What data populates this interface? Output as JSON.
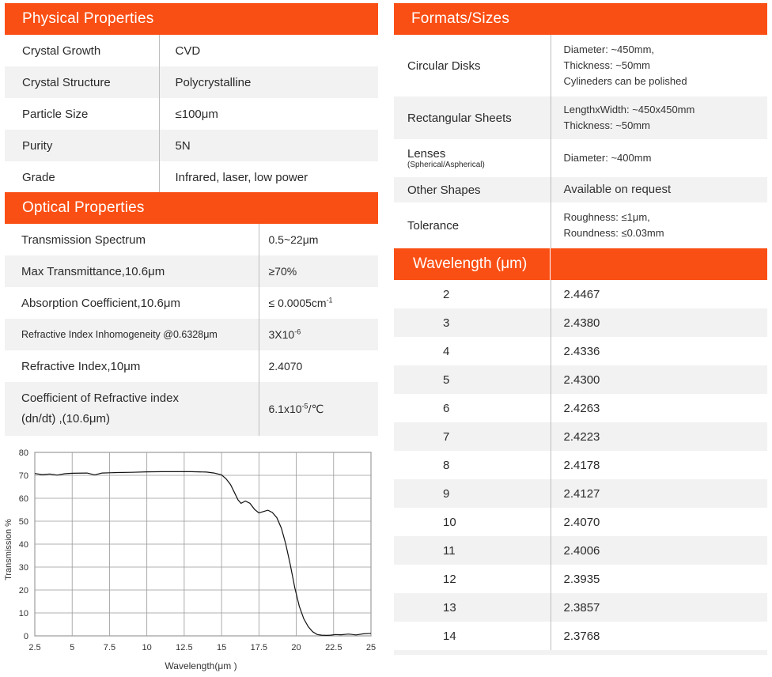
{
  "physical": {
    "title": "Physical Properties",
    "rows": [
      {
        "key": "Crystal Growth",
        "value": "CVD"
      },
      {
        "key": "Crystal Structure",
        "value": "Polycrystalline"
      },
      {
        "key": "Particle Size",
        "value": "≤100μm"
      },
      {
        "key": "Purity",
        "value": "5N"
      },
      {
        "key": "Grade",
        "value": "Infrared, laser, low power"
      }
    ]
  },
  "optical": {
    "title": "Optical Properties",
    "rows": [
      {
        "key": "Transmission Spectrum",
        "value": "0.5~22μm"
      },
      {
        "key": "Max Transmittance,10.6μm",
        "value": "≥70%"
      },
      {
        "key": "Absorption Coefficient,10.6μm",
        "value_base": "≤ 0.0005cm",
        "value_sup": "-1"
      },
      {
        "key": "Refractive Index Inhomogeneity @0.6328μm",
        "value_base": "3X10",
        "value_sup": "-6"
      },
      {
        "key": "Refractive Index,10μm",
        "value": "2.4070"
      },
      {
        "key_line1": "Coefficient of Refractive index",
        "key_line2": "(dn/dt) ,(10.6μm)",
        "value_base": "6.1x10",
        "value_sup": "-5",
        "value_suffix": "/℃"
      }
    ]
  },
  "formats": {
    "title": "Formats/Sizes",
    "rows": [
      {
        "key": "Circular Disks",
        "lines": [
          "Diameter: ~450mm,",
          "Thickness: ~50mm",
          "Cylineders can be polished"
        ]
      },
      {
        "key": "Rectangular Sheets",
        "lines": [
          "LengthxWidth: ~450x450mm",
          "Thickness: ~50mm"
        ]
      },
      {
        "key": "Lenses",
        "key_sub": "(Spherical/Aspherical)",
        "lines": [
          "Diameter: ~400mm"
        ]
      },
      {
        "key": "Other Shapes",
        "lines": [
          "Available on request"
        ]
      },
      {
        "key": "Tolerance",
        "lines": [
          "Roughness: ≤1μm,",
          "Roundness: ≤0.03mm"
        ]
      }
    ]
  },
  "wavelength": {
    "title": "Wavelength (μm)",
    "rows": [
      {
        "w": "2",
        "n": "2.4467"
      },
      {
        "w": "3",
        "n": "2.4380"
      },
      {
        "w": "4",
        "n": "2.4336"
      },
      {
        "w": "5",
        "n": "2.4300"
      },
      {
        "w": "6",
        "n": "2.4263"
      },
      {
        "w": "7",
        "n": "2.4223"
      },
      {
        "w": "8",
        "n": "2.4178"
      },
      {
        "w": "9",
        "n": "2.4127"
      },
      {
        "w": "10",
        "n": "2.4070"
      },
      {
        "w": "11",
        "n": "2.4006"
      },
      {
        "w": "12",
        "n": "2.3935"
      },
      {
        "w": "13",
        "n": "2.3857"
      },
      {
        "w": "14",
        "n": "2.3768"
      }
    ]
  },
  "chart_data": {
    "type": "line",
    "title": "",
    "xlabel": "Wavelength(μm )",
    "ylabel": "Transmission %",
    "xlim": [
      2.5,
      25
    ],
    "ylim": [
      0,
      80
    ],
    "xticks": [
      "2.5",
      "5",
      "7.5",
      "10",
      "12.5",
      "15",
      "17.5",
      "20",
      "22.5",
      "25"
    ],
    "yticks": [
      "0",
      "10",
      "20",
      "30",
      "40",
      "50",
      "60",
      "70",
      "80"
    ],
    "grid": true,
    "series": [
      {
        "color": "#111111",
        "x": [
          2.5,
          3.0,
          3.5,
          4.0,
          4.5,
          5.0,
          6.0,
          6.5,
          7.0,
          7.5,
          8.0,
          9.0,
          10.0,
          11.0,
          12.0,
          13.0,
          14.0,
          14.5,
          15.0,
          15.3,
          15.6,
          15.9,
          16.1,
          16.3,
          16.6,
          16.9,
          17.2,
          17.5,
          17.8,
          18.1,
          18.4,
          18.7,
          19.0,
          19.3,
          19.6,
          19.9,
          20.2,
          20.5,
          20.8,
          21.1,
          21.4,
          21.7,
          22.0,
          22.3,
          22.6,
          23.0,
          23.5,
          24.0,
          24.5,
          25.0
        ],
        "y": [
          70.8,
          70.3,
          70.6,
          70.1,
          70.7,
          70.9,
          71.0,
          70.2,
          71.0,
          71.1,
          71.2,
          71.3,
          71.5,
          71.6,
          71.6,
          71.6,
          71.4,
          71.0,
          70.2,
          68.5,
          66.0,
          62.0,
          59.3,
          57.8,
          58.8,
          57.8,
          55.2,
          53.6,
          54.2,
          54.8,
          53.8,
          51.5,
          47.0,
          40.0,
          31.0,
          21.0,
          13.0,
          7.5,
          4.0,
          1.8,
          0.6,
          0.3,
          0.2,
          0.3,
          0.6,
          0.5,
          0.8,
          0.4,
          0.9,
          1.1
        ]
      }
    ]
  }
}
